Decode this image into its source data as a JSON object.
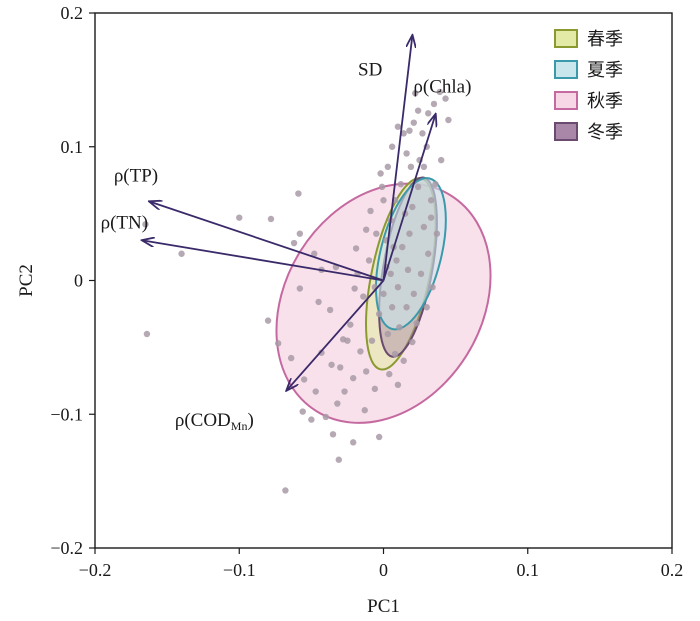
{
  "chart_data": {
    "type": "scatter",
    "xlabel": "PC1",
    "ylabel": "PC2",
    "xlim": [
      -0.2,
      0.2
    ],
    "ylim": [
      -0.2,
      0.2
    ],
    "xticks": [
      "−0.2",
      "−0.1",
      "0",
      "0.1",
      "0.2"
    ],
    "yticks": [
      "−0.2",
      "−0.1",
      "0",
      "0.1",
      "0.2"
    ],
    "grid": false,
    "legend_position": "top-right",
    "legend": [
      {
        "label": "春季",
        "fill": "#e3eaa6",
        "stroke": "#8a9a30"
      },
      {
        "label": "夏季",
        "fill": "#c9e6ec",
        "stroke": "#3a9aab"
      },
      {
        "label": "秋季",
        "fill": "#f7d7e6",
        "stroke": "#c56aa0"
      },
      {
        "label": "冬季",
        "fill": "#a887a9",
        "stroke": "#6a4a6e"
      }
    ],
    "loadings": [
      {
        "label": "SD",
        "x": 0.02,
        "y": 0.183
      },
      {
        "label": "ρ(Chla)",
        "x": 0.036,
        "y": 0.124
      },
      {
        "label": "ρ(TP)",
        "x": -0.162,
        "y": 0.059
      },
      {
        "label": "ρ(TN)",
        "x": -0.167,
        "y": 0.03
      },
      {
        "label": "ρ(COD",
        "sub": "Mn",
        "suffix": ")",
        "x": -0.067,
        "y": -0.082
      }
    ],
    "ellipses": [
      {
        "season": "秋季",
        "cx": 0.0,
        "cy": -0.017,
        "rx": 0.068,
        "ry": 0.095,
        "angle": 32,
        "fill": "#f7d7e6",
        "stroke": "#c56aa0",
        "opacity": 0.75
      },
      {
        "season": "春季",
        "cx": 0.012,
        "cy": 0.005,
        "rx": 0.02,
        "ry": 0.073,
        "angle": 12,
        "fill": "#e3eaa6",
        "stroke": "#8a9a30",
        "opacity": 0.6
      },
      {
        "season": "冬季",
        "cx": 0.017,
        "cy": 0.01,
        "rx": 0.017,
        "ry": 0.068,
        "angle": 10,
        "fill": "#a887a9",
        "stroke": "#6a4a6e",
        "opacity": 0.45
      },
      {
        "season": "夏季",
        "cx": 0.019,
        "cy": 0.02,
        "rx": 0.021,
        "ry": 0.058,
        "angle": 14,
        "fill": "#c9e6ec",
        "stroke": "#3a9aab",
        "opacity": 0.6
      }
    ],
    "points": [
      [
        -0.164,
        -0.04
      ],
      [
        -0.165,
        0.042
      ],
      [
        -0.14,
        0.02
      ],
      [
        -0.1,
        0.047
      ],
      [
        -0.078,
        0.046
      ],
      [
        -0.062,
        0.028
      ],
      [
        -0.059,
        0.065
      ],
      [
        -0.058,
        0.035
      ],
      [
        -0.048,
        0.02
      ],
      [
        -0.043,
        0.008
      ],
      [
        -0.08,
        -0.03
      ],
      [
        -0.073,
        -0.047
      ],
      [
        -0.064,
        -0.058
      ],
      [
        -0.055,
        -0.074
      ],
      [
        -0.047,
        -0.083
      ],
      [
        -0.05,
        -0.104
      ],
      [
        -0.056,
        -0.098
      ],
      [
        -0.04,
        -0.102
      ],
      [
        -0.032,
        -0.092
      ],
      [
        -0.027,
        -0.083
      ],
      [
        -0.021,
        -0.073
      ],
      [
        -0.036,
        -0.063
      ],
      [
        -0.043,
        -0.054
      ],
      [
        -0.028,
        -0.044
      ],
      [
        -0.023,
        -0.033
      ],
      [
        -0.037,
        -0.022
      ],
      [
        -0.016,
        -0.053
      ],
      [
        -0.012,
        -0.068
      ],
      [
        -0.068,
        -0.157
      ],
      [
        -0.031,
        -0.134
      ],
      [
        -0.003,
        -0.117
      ],
      [
        -0.021,
        -0.121
      ],
      [
        -0.035,
        -0.115
      ],
      [
        -0.013,
        -0.097
      ],
      [
        -0.006,
        -0.081
      ],
      [
        -0.058,
        -0.006
      ],
      [
        -0.045,
        -0.016
      ],
      [
        -0.033,
        0.01
      ],
      [
        -0.019,
        0.024
      ],
      [
        -0.012,
        0.038
      ],
      [
        -0.009,
        0.052
      ],
      [
        -0.002,
        0.08
      ],
      [
        0.0,
        0.06
      ],
      [
        0.003,
        0.085
      ],
      [
        0.006,
        0.1
      ],
      [
        0.01,
        0.115
      ],
      [
        0.014,
        0.11
      ],
      [
        0.018,
        0.112
      ],
      [
        0.021,
        0.118
      ],
      [
        0.024,
        0.127
      ],
      [
        0.027,
        0.11
      ],
      [
        0.031,
        0.125
      ],
      [
        0.035,
        0.132
      ],
      [
        0.039,
        0.141
      ],
      [
        0.043,
        0.136
      ],
      [
        0.045,
        0.12
      ],
      [
        0.022,
        0.14
      ],
      [
        0.03,
        0.1
      ],
      [
        0.04,
        0.09
      ],
      [
        0.036,
        0.072
      ],
      [
        -0.005,
        0.035
      ],
      [
        0.002,
        0.03
      ],
      [
        0.005,
        0.045
      ],
      [
        0.008,
        0.06
      ],
      [
        0.012,
        0.072
      ],
      [
        0.015,
        0.05
      ],
      [
        0.018,
        0.035
      ],
      [
        0.02,
        0.055
      ],
      [
        0.024,
        0.07
      ],
      [
        0.028,
        0.04
      ],
      [
        0.031,
        0.02
      ],
      [
        0.026,
        0.005
      ],
      [
        0.034,
        -0.005
      ],
      [
        0.03,
        -0.02
      ],
      [
        0.023,
        -0.032
      ],
      [
        0.02,
        -0.046
      ],
      [
        0.014,
        -0.06
      ],
      [
        0.008,
        -0.055
      ],
      [
        0.003,
        -0.04
      ],
      [
        -0.003,
        -0.025
      ],
      [
        0.0,
        -0.01
      ],
      [
        0.005,
        0.005
      ],
      [
        0.009,
        0.015
      ],
      [
        0.013,
        0.025
      ],
      [
        0.017,
        0.008
      ],
      [
        0.021,
        -0.01
      ],
      [
        0.016,
        -0.02
      ],
      [
        0.011,
        -0.035
      ],
      [
        0.006,
        -0.02
      ],
      [
        0.002,
        0.01
      ],
      [
        -0.006,
        -0.005
      ],
      [
        -0.01,
        0.015
      ],
      [
        -0.014,
        -0.012
      ],
      [
        -0.018,
        0.005
      ],
      [
        -0.008,
        -0.045
      ],
      [
        0.025,
        0.09
      ],
      [
        0.019,
        0.085
      ],
      [
        0.016,
        0.095
      ],
      [
        0.033,
        0.06
      ],
      [
        0.037,
        0.035
      ],
      [
        -0.02,
        -0.006
      ],
      [
        -0.025,
        -0.045
      ],
      [
        -0.03,
        -0.065
      ],
      [
        0.004,
        -0.07
      ],
      [
        0.01,
        -0.078
      ],
      [
        -0.001,
        0.07
      ],
      [
        0.007,
        0.025
      ],
      [
        0.01,
        -0.005
      ],
      [
        0.028,
        0.085
      ],
      [
        0.033,
        0.047
      ]
    ]
  }
}
